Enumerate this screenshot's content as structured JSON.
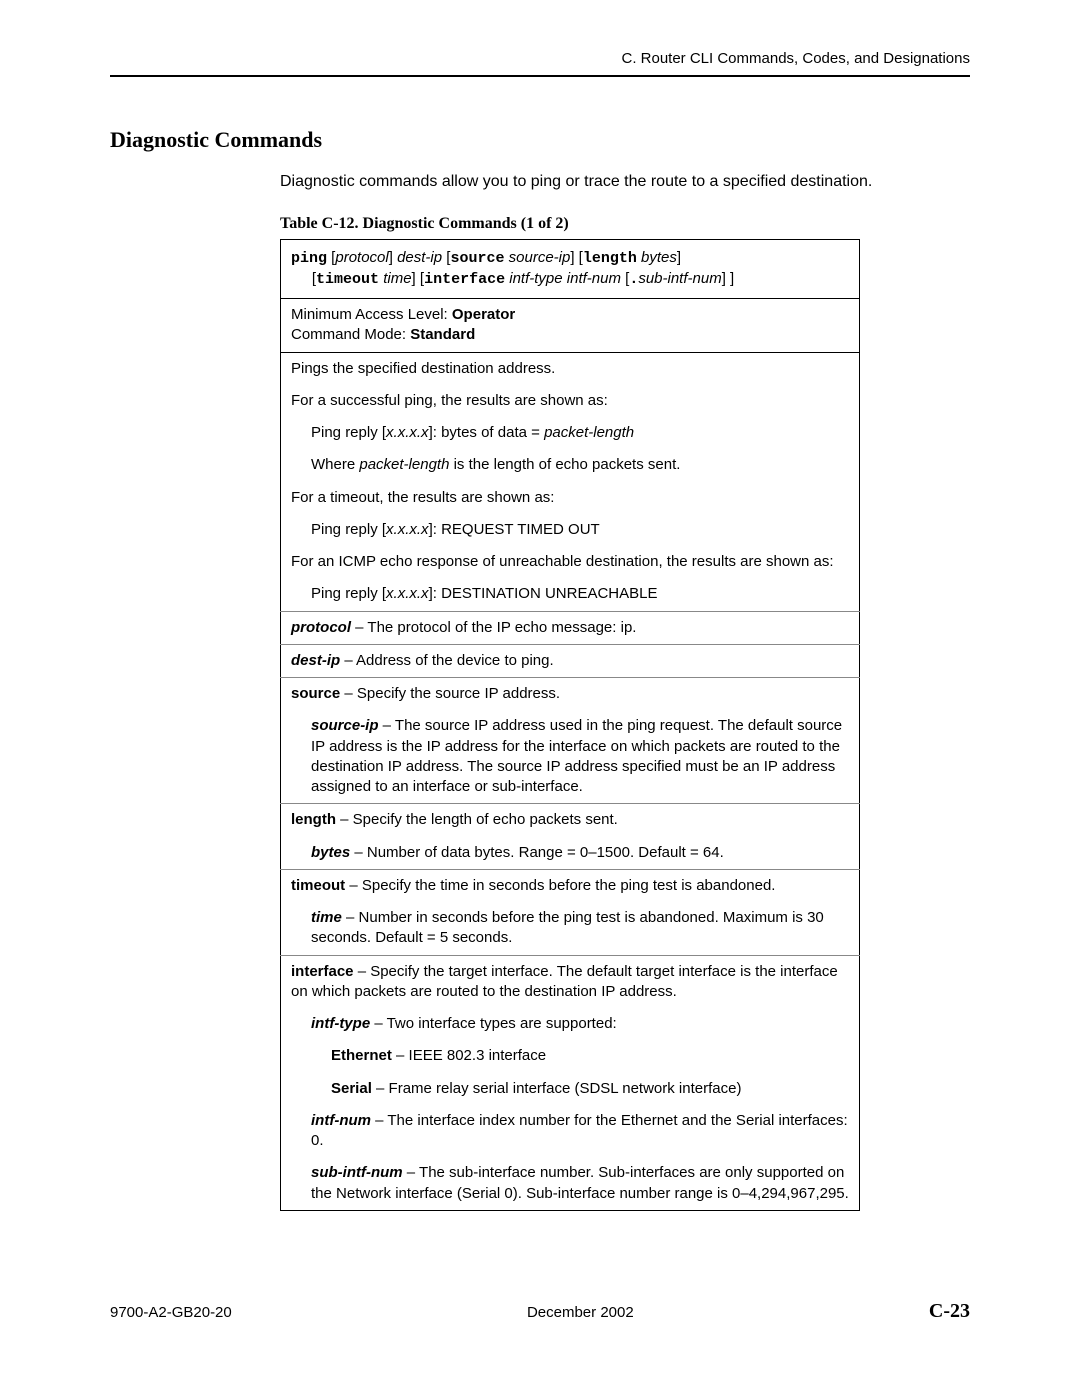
{
  "header": {
    "text": "C. Router CLI Commands, Codes, and Designations"
  },
  "section": {
    "title": "Diagnostic Commands"
  },
  "intro": {
    "text": "Diagnostic commands allow you to ping or trace the route to a specified destination."
  },
  "table": {
    "caption": "Table C-12.  Diagnostic Commands (1 of 2)",
    "syntax": {
      "line1_parts": [
        {
          "t": "ping",
          "cls": "mono"
        },
        {
          "t": " [",
          "cls": ""
        },
        {
          "t": "protocol",
          "cls": "ital"
        },
        {
          "t": "] ",
          "cls": ""
        },
        {
          "t": "dest-ip",
          "cls": "ital"
        },
        {
          "t": " [",
          "cls": ""
        },
        {
          "t": "source",
          "cls": "mono"
        },
        {
          "t": " ",
          "cls": ""
        },
        {
          "t": "source-ip",
          "cls": "ital"
        },
        {
          "t": "] [",
          "cls": ""
        },
        {
          "t": "length",
          "cls": "mono"
        },
        {
          "t": " ",
          "cls": ""
        },
        {
          "t": "bytes",
          "cls": "ital"
        },
        {
          "t": "]",
          "cls": ""
        }
      ],
      "line2_parts": [
        {
          "t": "[",
          "cls": ""
        },
        {
          "t": "timeout",
          "cls": "mono"
        },
        {
          "t": " ",
          "cls": ""
        },
        {
          "t": "time",
          "cls": "ital"
        },
        {
          "t": "] [",
          "cls": ""
        },
        {
          "t": "interface",
          "cls": "mono"
        },
        {
          "t": " ",
          "cls": ""
        },
        {
          "t": "intf-type intf-num",
          "cls": "ital"
        },
        {
          "t": " [",
          "cls": ""
        },
        {
          "t": ".",
          "cls": "mono"
        },
        {
          "t": "sub-intf-num",
          "cls": "ital"
        },
        {
          "t": "] ]",
          "cls": ""
        }
      ]
    },
    "access": {
      "l1a": "Minimum Access Level: ",
      "l1b": "Operator",
      "l2a": "Command Mode: ",
      "l2b": "Standard"
    },
    "rows": [
      {
        "ind": 0,
        "parts": [
          {
            "t": "Pings the specified destination address.",
            "cls": ""
          }
        ]
      },
      {
        "ind": 0,
        "parts": [
          {
            "t": "For a successful ping, the results are shown as:",
            "cls": ""
          }
        ]
      },
      {
        "ind": 1,
        "parts": [
          {
            "t": "Ping reply [",
            "cls": ""
          },
          {
            "t": "x.x.x.x",
            "cls": "ital"
          },
          {
            "t": "]: bytes of data = ",
            "cls": ""
          },
          {
            "t": "packet-length",
            "cls": "ital"
          }
        ]
      },
      {
        "ind": 1,
        "parts": [
          {
            "t": "Where ",
            "cls": ""
          },
          {
            "t": "packet-length",
            "cls": "ital"
          },
          {
            "t": " is the length of echo packets sent.",
            "cls": ""
          }
        ]
      },
      {
        "ind": 0,
        "parts": [
          {
            "t": "For a timeout, the results are shown as:",
            "cls": ""
          }
        ]
      },
      {
        "ind": 1,
        "parts": [
          {
            "t": "Ping reply [",
            "cls": ""
          },
          {
            "t": "x.x.x.x",
            "cls": "ital"
          },
          {
            "t": "]: REQUEST TIMED OUT",
            "cls": ""
          }
        ]
      },
      {
        "ind": 0,
        "parts": [
          {
            "t": "For an ICMP echo response of unreachable destination, the results are shown as:",
            "cls": ""
          }
        ]
      },
      {
        "ind": 1,
        "parts": [
          {
            "t": "Ping reply [",
            "cls": ""
          },
          {
            "t": "x.x.x.x",
            "cls": "ital"
          },
          {
            "t": "]: DESTINATION UNREACHABLE",
            "cls": ""
          }
        ]
      },
      {
        "ind": 0,
        "div": true,
        "parts": [
          {
            "t": "protocol",
            "cls": "bold-ital"
          },
          {
            "t": " – The protocol of the IP echo message: ip.",
            "cls": ""
          }
        ]
      },
      {
        "ind": 0,
        "div": true,
        "parts": [
          {
            "t": "dest-ip",
            "cls": "bold-ital"
          },
          {
            "t": " – Address of the device to ping.",
            "cls": ""
          }
        ]
      },
      {
        "ind": 0,
        "div": true,
        "parts": [
          {
            "t": "source",
            "cls": "bold"
          },
          {
            "t": " – Specify the source IP address.",
            "cls": ""
          }
        ]
      },
      {
        "ind": 1,
        "parts": [
          {
            "t": "source-ip",
            "cls": "bold-ital"
          },
          {
            "t": " – The source IP address used in the ping request. The default source IP address is the IP address for the interface on which packets are routed to the destination IP address. The source IP address specified must be an IP address assigned to an interface or sub-interface.",
            "cls": ""
          }
        ]
      },
      {
        "ind": 0,
        "div": true,
        "parts": [
          {
            "t": "length",
            "cls": "bold"
          },
          {
            "t": " – Specify the length of echo packets sent.",
            "cls": ""
          }
        ]
      },
      {
        "ind": 1,
        "parts": [
          {
            "t": "bytes",
            "cls": "bold-ital"
          },
          {
            "t": " – Number of data bytes. Range = 0–1500. Default = 64.",
            "cls": ""
          }
        ]
      },
      {
        "ind": 0,
        "div": true,
        "parts": [
          {
            "t": "timeout",
            "cls": "bold"
          },
          {
            "t": " – Specify the time in seconds before the ping test is abandoned.",
            "cls": ""
          }
        ]
      },
      {
        "ind": 1,
        "parts": [
          {
            "t": "time",
            "cls": "bold-ital"
          },
          {
            "t": " – Number in seconds before the ping test is abandoned. Maximum is 30 seconds. Default = 5 seconds.",
            "cls": ""
          }
        ]
      },
      {
        "ind": 0,
        "div": true,
        "parts": [
          {
            "t": "interface",
            "cls": "bold"
          },
          {
            "t": " – Specify the target interface. The default target interface is the interface on which packets are routed to the destination IP address.",
            "cls": ""
          }
        ]
      },
      {
        "ind": 1,
        "parts": [
          {
            "t": "intf-type",
            "cls": "bold-ital"
          },
          {
            "t": " – Two interface types are supported:",
            "cls": ""
          }
        ]
      },
      {
        "ind": 2,
        "parts": [
          {
            "t": "Ethernet",
            "cls": "bold"
          },
          {
            "t": " – IEEE 802.3 interface",
            "cls": ""
          }
        ]
      },
      {
        "ind": 2,
        "parts": [
          {
            "t": "Serial",
            "cls": "bold"
          },
          {
            "t": " – Frame relay serial interface (SDSL network interface)",
            "cls": ""
          }
        ]
      },
      {
        "ind": 1,
        "parts": [
          {
            "t": "intf-num",
            "cls": "bold-ital"
          },
          {
            "t": " – The interface index number for the Ethernet and the Serial interfaces: 0.",
            "cls": ""
          }
        ]
      },
      {
        "ind": 1,
        "parts": [
          {
            "t": "sub-intf-num",
            "cls": "bold-ital"
          },
          {
            "t": " – The sub-interface number. Sub-interfaces are only supported on the Network interface (Serial 0). Sub-interface number range is 0–4,294,967,295.",
            "cls": ""
          }
        ]
      }
    ]
  },
  "footer": {
    "left": "9700-A2-GB20-20",
    "center": "December 2002",
    "right": "C-23"
  }
}
